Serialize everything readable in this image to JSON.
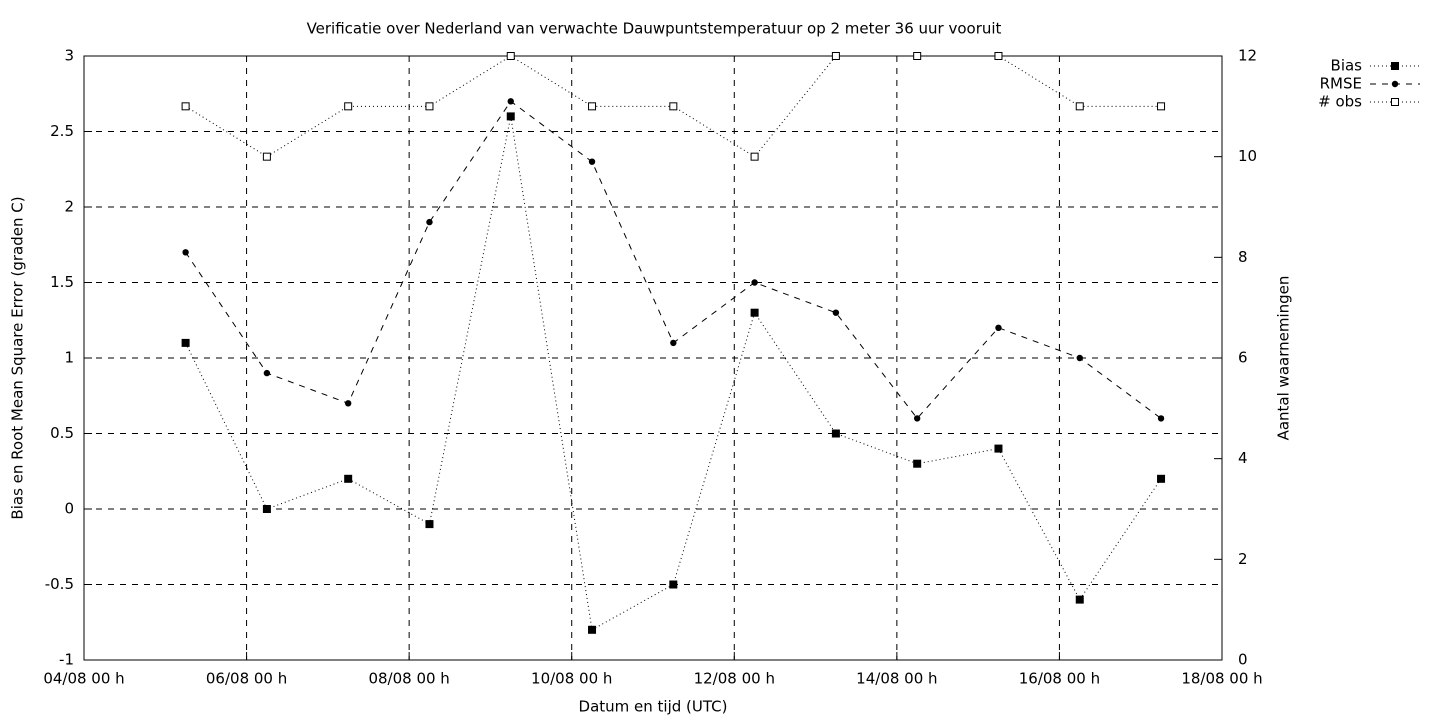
{
  "chart_data": {
    "type": "line",
    "title": "Verificatie over Nederland van verwachte Dauwpuntstemperatuur op 2 meter 36 uur vooruit",
    "xlabel": "Datum en tijd (UTC)",
    "ylabel": "Bias en Root Mean Square Error (graden C)",
    "y2label": "Aantal waarnemingen",
    "x": [
      5.25,
      6.25,
      7.25,
      8.25,
      9.25,
      10.25,
      11.25,
      12.25,
      13.25,
      14.25,
      15.25,
      16.25,
      17.25
    ],
    "xlim": [
      4,
      18
    ],
    "xticks": [
      {
        "value": 4,
        "label": "04/08 00 h"
      },
      {
        "value": 6,
        "label": "06/08 00 h"
      },
      {
        "value": 8,
        "label": "08/08 00 h"
      },
      {
        "value": 10,
        "label": "10/08 00 h"
      },
      {
        "value": 12,
        "label": "12/08 00 h"
      },
      {
        "value": 14,
        "label": "14/08 00 h"
      },
      {
        "value": 16,
        "label": "16/08 00 h"
      },
      {
        "value": 18,
        "label": "18/08 00 h"
      }
    ],
    "ylim": [
      -1,
      3
    ],
    "yticks": [
      -1,
      -0.5,
      0,
      0.5,
      1,
      1.5,
      2,
      2.5,
      3
    ],
    "y2lim": [
      0,
      12
    ],
    "y2ticks": [
      0,
      2,
      4,
      6,
      8,
      10,
      12
    ],
    "grid": true,
    "legend": "outside-top-right",
    "series": [
      {
        "name": "Bias",
        "color": "#000000",
        "dash": "1 3",
        "marker": "filled-square",
        "values": [
          1.1,
          0,
          0.2,
          -0.1,
          2.6,
          -0.8,
          -0.5,
          1.3,
          0.5,
          0.3,
          0.4,
          -0.6,
          0.2
        ]
      },
      {
        "name": "RMSE",
        "color": "#000000",
        "dash": "6 6",
        "marker": "filled-circle",
        "values": [
          1.7,
          0.9,
          0.7,
          1.9,
          2.7,
          2.3,
          1.1,
          1.5,
          1.3,
          0.6,
          1.2,
          1.0,
          0.6
        ]
      },
      {
        "name": "# obs",
        "color": "#000000",
        "dash": "1 3",
        "marker": "open-square",
        "axis": "y2",
        "values": [
          11,
          10,
          11,
          11,
          12,
          11,
          11,
          10,
          12,
          12,
          12,
          11,
          11
        ]
      }
    ]
  }
}
